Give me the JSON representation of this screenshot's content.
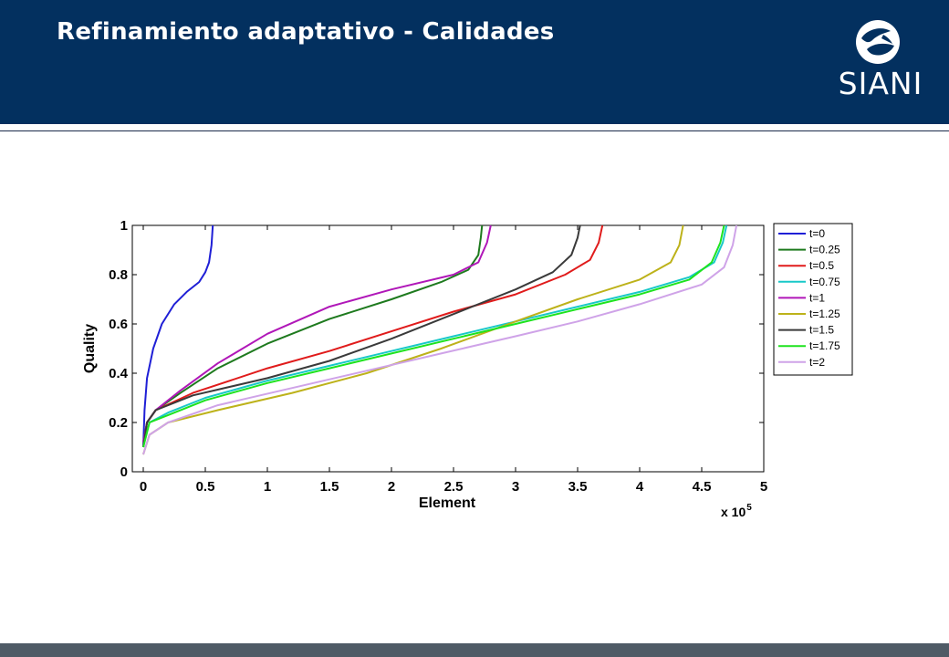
{
  "slide": {
    "title": "Refinamiento adaptativo - Calidades",
    "logo_text": "SIANI",
    "colors": {
      "header": "#03305f",
      "footer": "#4f5b66"
    }
  },
  "chart_data": {
    "type": "line",
    "title": "",
    "xlabel": "Element",
    "ylabel": "Quality",
    "x_multiplier_label": "x 10",
    "x_multiplier_exponent": "5",
    "xlim": [
      0,
      500000
    ],
    "ylim": [
      0,
      1
    ],
    "xticks": [
      0,
      50000,
      100000,
      150000,
      200000,
      250000,
      300000,
      350000,
      400000,
      450000,
      500000
    ],
    "xtick_labels": [
      "0",
      "0.5",
      "1",
      "1.5",
      "2",
      "2.5",
      "3",
      "3.5",
      "4",
      "4.5",
      "5"
    ],
    "yticks": [
      0,
      0.2,
      0.4,
      0.6,
      0.8,
      1
    ],
    "ytick_labels": [
      "0",
      "0.2",
      "0.4",
      "0.6",
      "0.8",
      "1"
    ],
    "grid": false,
    "legend_position": "outside-right",
    "series": [
      {
        "name": "t=0",
        "color": "#1f1fd6",
        "x": [
          0,
          1000,
          3000,
          8000,
          15000,
          25000,
          35000,
          45000,
          50000,
          53000,
          55000,
          56000
        ],
        "y": [
          0.1,
          0.25,
          0.38,
          0.5,
          0.6,
          0.68,
          0.73,
          0.77,
          0.81,
          0.85,
          0.92,
          1.0
        ]
      },
      {
        "name": "t=0.25",
        "color": "#1e7a1e",
        "x": [
          0,
          3000,
          10000,
          30000,
          60000,
          100000,
          150000,
          200000,
          240000,
          262000,
          270000,
          272000,
          273000
        ],
        "y": [
          0.12,
          0.2,
          0.25,
          0.32,
          0.42,
          0.52,
          0.62,
          0.7,
          0.77,
          0.82,
          0.88,
          0.95,
          1.0
        ]
      },
      {
        "name": "t=0.5",
        "color": "#e01b1b",
        "x": [
          0,
          3000,
          10000,
          40000,
          100000,
          150000,
          200000,
          250000,
          300000,
          340000,
          360000,
          367000,
          370000
        ],
        "y": [
          0.1,
          0.2,
          0.25,
          0.32,
          0.42,
          0.49,
          0.57,
          0.65,
          0.72,
          0.8,
          0.86,
          0.93,
          1.0
        ]
      },
      {
        "name": "t=0.75",
        "color": "#18c8c8",
        "x": [
          0,
          5000,
          20000,
          50000,
          100000,
          150000,
          200000,
          250000,
          300000,
          350000,
          400000,
          440000,
          460000,
          467000,
          470000
        ],
        "y": [
          0.1,
          0.2,
          0.24,
          0.3,
          0.37,
          0.43,
          0.49,
          0.55,
          0.61,
          0.67,
          0.73,
          0.79,
          0.85,
          0.93,
          1.0
        ]
      },
      {
        "name": "t=1",
        "color": "#b017b8",
        "x": [
          0,
          3000,
          10000,
          30000,
          60000,
          100000,
          150000,
          200000,
          250000,
          270000,
          277000,
          280000
        ],
        "y": [
          0.12,
          0.2,
          0.25,
          0.33,
          0.44,
          0.56,
          0.67,
          0.74,
          0.8,
          0.85,
          0.93,
          1.0
        ]
      },
      {
        "name": "t=1.25",
        "color": "#bdb21a",
        "x": [
          0,
          5000,
          20000,
          60000,
          120000,
          180000,
          240000,
          300000,
          350000,
          400000,
          425000,
          432000,
          435000
        ],
        "y": [
          0.07,
          0.15,
          0.2,
          0.25,
          0.32,
          0.4,
          0.5,
          0.61,
          0.7,
          0.78,
          0.85,
          0.92,
          1.0
        ]
      },
      {
        "name": "t=1.5",
        "color": "#3a3a3a",
        "x": [
          0,
          3000,
          10000,
          40000,
          100000,
          150000,
          200000,
          250000,
          300000,
          330000,
          345000,
          350000,
          352000
        ],
        "y": [
          0.1,
          0.2,
          0.25,
          0.31,
          0.38,
          0.45,
          0.54,
          0.64,
          0.74,
          0.81,
          0.88,
          0.95,
          1.0
        ]
      },
      {
        "name": "t=1.75",
        "color": "#1ee31e",
        "x": [
          0,
          5000,
          20000,
          50000,
          100000,
          150000,
          200000,
          250000,
          300000,
          350000,
          400000,
          440000,
          458000,
          465000,
          468000
        ],
        "y": [
          0.1,
          0.2,
          0.23,
          0.29,
          0.36,
          0.42,
          0.48,
          0.54,
          0.6,
          0.66,
          0.72,
          0.78,
          0.85,
          0.93,
          1.0
        ]
      },
      {
        "name": "t=2",
        "color": "#cfa3e8",
        "x": [
          0,
          5000,
          20000,
          60000,
          120000,
          180000,
          240000,
          300000,
          350000,
          400000,
          450000,
          468000,
          475000,
          478000
        ],
        "y": [
          0.07,
          0.15,
          0.2,
          0.27,
          0.34,
          0.41,
          0.48,
          0.55,
          0.61,
          0.68,
          0.76,
          0.83,
          0.92,
          1.0
        ]
      }
    ]
  }
}
